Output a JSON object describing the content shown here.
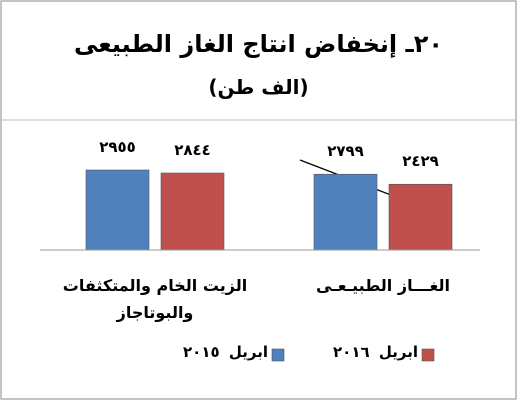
{
  "chart_data": {
    "type": "bar",
    "title": "٢٠ـ إنخفاض انتاج الغاز الطبيعى",
    "subtitle": "(الف طن)",
    "categories": [
      "الغـــاز الطبيـعـى",
      "الزيت الخام والمتكثفات والبوتاجاز"
    ],
    "series": [
      {
        "name": "ابريل ٢٠١٥",
        "color": "#4f81bd",
        "values": [
          2799,
          2955
        ],
        "value_labels": [
          "٢٧٩٩",
          "٢٩٥٥"
        ]
      },
      {
        "name": "ابريل ٢٠١٦",
        "color": "#c0504d",
        "values": [
          2429,
          2844
        ],
        "value_labels": [
          "٢٤٢٩",
          "٢٨٤٤"
        ]
      }
    ]
  }
}
